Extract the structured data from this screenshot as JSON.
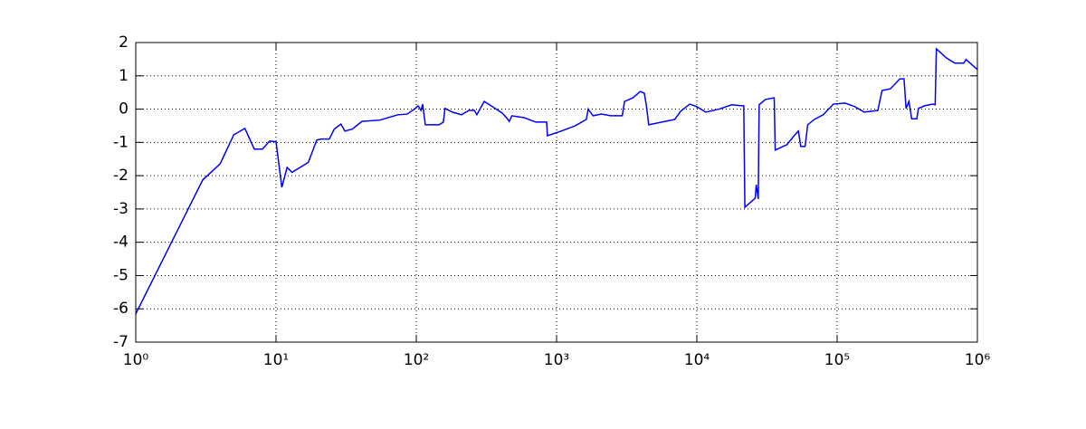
{
  "chart_data": {
    "type": "line",
    "log_x": true,
    "grid": true,
    "color": "#0000ff",
    "x": [
      1,
      3,
      4,
      5,
      6,
      7,
      8,
      9,
      10,
      11,
      12,
      13,
      17,
      19.5,
      21,
      24,
      26,
      29,
      31,
      35,
      41,
      55,
      74,
      86,
      97,
      103,
      108,
      111,
      116,
      145,
      156,
      160,
      181,
      210,
      237,
      260,
      270,
      305,
      350,
      410,
      440,
      460,
      480,
      590,
      710,
      850,
      860,
      1080,
      1360,
      1630,
      1680,
      1820,
      2090,
      2430,
      2940,
      3050,
      3500,
      3950,
      4220,
      4370,
      4540,
      5940,
      6960,
      7680,
      8900,
      10000,
      11600,
      14400,
      17700,
      21000,
      21600,
      22000,
      26100,
      26500,
      27400,
      27800,
      30800,
      35600,
      36200,
      43800,
      49300,
      53000,
      55000,
      59100,
      61700,
      68800,
      79600,
      94000,
      114000,
      134000,
      156000,
      195000,
      209000,
      240000,
      280000,
      300000,
      310000,
      325000,
      340000,
      370000,
      380000,
      420000,
      480000,
      500000,
      510000,
      600000,
      690000,
      800000,
      830000,
      1000000
    ],
    "values": [
      -6.15,
      -2.13,
      -1.64,
      -0.77,
      -0.58,
      -1.2,
      -1.2,
      -0.96,
      -0.98,
      -2.35,
      -1.75,
      -1.9,
      -1.6,
      -0.93,
      -0.9,
      -0.9,
      -0.6,
      -0.45,
      -0.66,
      -0.6,
      -0.37,
      -0.33,
      -0.17,
      -0.15,
      0,
      0.1,
      -0.04,
      0.15,
      -0.47,
      -0.47,
      -0.39,
      0.02,
      -0.09,
      -0.17,
      -0.04,
      -0.04,
      -0.17,
      0.23,
      0.07,
      -0.12,
      -0.26,
      -0.37,
      -0.2,
      -0.26,
      -0.39,
      -0.39,
      -0.8,
      -0.66,
      -0.5,
      -0.31,
      0,
      -0.2,
      -0.15,
      -0.2,
      -0.2,
      0.23,
      0.34,
      0.53,
      0.48,
      0.1,
      -0.47,
      -0.37,
      -0.31,
      -0.06,
      0.15,
      0.07,
      -0.09,
      0,
      0.13,
      0.1,
      0.1,
      -2.95,
      -2.67,
      -2.27,
      -2.7,
      0.13,
      0.29,
      0.34,
      -1.23,
      -1.07,
      -0.8,
      -0.66,
      -1.12,
      -1.12,
      -0.47,
      -0.31,
      -0.17,
      0.15,
      0.18,
      0.07,
      -0.09,
      -0.04,
      0.56,
      0.61,
      0.91,
      0.91,
      0.02,
      0.23,
      -0.29,
      -0.29,
      0.02,
      0.1,
      0.15,
      0.13,
      1.81,
      1.54,
      1.38,
      1.38,
      1.49,
      1.19
    ],
    "xlim": [
      1,
      1000000
    ],
    "xticks": [
      {
        "value": 1,
        "label": "10⁰"
      },
      {
        "value": 10,
        "label": "10¹"
      },
      {
        "value": 100,
        "label": "10²"
      },
      {
        "value": 1000,
        "label": "10³"
      },
      {
        "value": 10000,
        "label": "10⁴"
      },
      {
        "value": 100000,
        "label": "10⁵"
      },
      {
        "value": 1000000,
        "label": "10⁶"
      }
    ],
    "ylim": [
      -7,
      2
    ],
    "yticks": [
      -7,
      -6,
      -5,
      -4,
      -3,
      -2,
      -1,
      0,
      1,
      2
    ]
  }
}
